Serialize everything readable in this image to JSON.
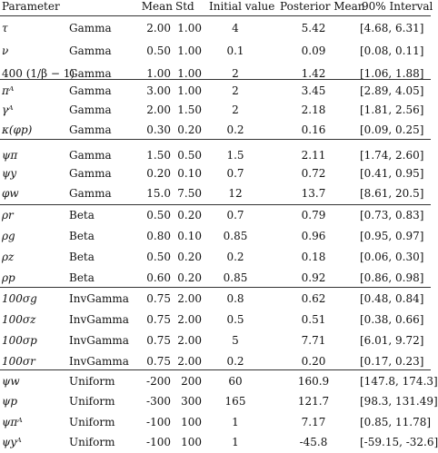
{
  "header": {
    "parameter": "Parameter",
    "mean": "Mean",
    "std": "Std",
    "initial": "Initial value",
    "posterior": "Posterior Mean",
    "interval": "90% Interval"
  },
  "rows": [
    {
      "param": "τ",
      "dist": "Gamma",
      "mean": "2.00",
      "std": "1.00",
      "init": "4",
      "post": "5.42",
      "interval": "[4.68, 6.31]"
    },
    {
      "param": "ν",
      "dist": "Gamma",
      "mean": "0.50",
      "std": "1.00",
      "init": "0.1",
      "post": "0.09",
      "interval": "[0.08, 0.11]"
    },
    {
      "param": "400 (1/β − 1)",
      "dist": "Gamma",
      "mean": "1.00",
      "std": "1.00",
      "init": "2",
      "post": "1.42",
      "interval": "[1.06, 1.88]"
    },
    {
      "param": "πᴬ",
      "dist": "Gamma",
      "mean": "3.00",
      "std": "1.00",
      "init": "2",
      "post": "3.45",
      "interval": "[2.89, 4.05]"
    },
    {
      "param": "γᴬ",
      "dist": "Gamma",
      "mean": "2.00",
      "std": "1.50",
      "init": "2",
      "post": "2.18",
      "interval": "[1.81, 2.56]"
    },
    {
      "param": "κ(φp)",
      "dist": "Gamma",
      "mean": "0.30",
      "std": "0.20",
      "init": "0.2",
      "post": "0.16",
      "interval": "[0.09, 0.25]"
    },
    {
      "param": "ψπ",
      "dist": "Gamma",
      "mean": "1.50",
      "std": "0.50",
      "init": "1.5",
      "post": "2.11",
      "interval": "[1.74, 2.60]"
    },
    {
      "param": "ψy",
      "dist": "Gamma",
      "mean": "0.20",
      "std": "0.10",
      "init": "0.7",
      "post": "0.72",
      "interval": "[0.41, 0.95]"
    },
    {
      "param": "φw",
      "dist": "Gamma",
      "mean": "15.0",
      "std": "7.50",
      "init": "12",
      "post": "13.7",
      "interval": "[8.61, 20.5]"
    },
    {
      "param": "ρr",
      "dist": "Beta",
      "mean": "0.50",
      "std": "0.20",
      "init": "0.7",
      "post": "0.79",
      "interval": "[0.73, 0.83]"
    },
    {
      "param": "ρg",
      "dist": "Beta",
      "mean": "0.80",
      "std": "0.10",
      "init": "0.85",
      "post": "0.96",
      "interval": "[0.95, 0.97]"
    },
    {
      "param": "ρz",
      "dist": "Beta",
      "mean": "0.50",
      "std": "0.20",
      "init": "0.2",
      "post": "0.18",
      "interval": "[0.06, 0.30]"
    },
    {
      "param": "ρp",
      "dist": "Beta",
      "mean": "0.60",
      "std": "0.20",
      "init": "0.85",
      "post": "0.92",
      "interval": "[0.86, 0.98]"
    },
    {
      "param": "100σg",
      "dist": "InvGamma",
      "mean": "0.75",
      "std": "2.00",
      "init": "0.8",
      "post": "0.62",
      "interval": "[0.48, 0.84]"
    },
    {
      "param": "100σz",
      "dist": "InvGamma",
      "mean": "0.75",
      "std": "2.00",
      "init": "0.5",
      "post": "0.51",
      "interval": "[0.38, 0.66]"
    },
    {
      "param": "100σp",
      "dist": "InvGamma",
      "mean": "0.75",
      "std": "2.00",
      "init": "5",
      "post": "7.71",
      "interval": "[6.01, 9.72]"
    },
    {
      "param": "100σr",
      "dist": "InvGamma",
      "mean": "0.75",
      "std": "2.00",
      "init": "0.2",
      "post": "0.20",
      "interval": "[0.17, 0.23]"
    },
    {
      "param": "ψw",
      "dist": "Uniform",
      "mean": "-200",
      "std": "200",
      "init": "60",
      "post": "160.9",
      "interval": "[147.8, 174.3]"
    },
    {
      "param": "ψp",
      "dist": "Uniform",
      "mean": "-300",
      "std": "300",
      "init": "165",
      "post": "121.7",
      "interval": "[98.3, 131.49]"
    },
    {
      "param": "ψπᴬ",
      "dist": "Uniform",
      "mean": "-100",
      "std": "100",
      "init": "1",
      "post": "7.17",
      "interval": "[0.85, 11.78]"
    },
    {
      "param": "ψyᴬ",
      "dist": "Uniform",
      "mean": "-100",
      "std": "100",
      "init": "1",
      "post": "-45.8",
      "interval": "[-59.15, -32.6]"
    }
  ]
}
